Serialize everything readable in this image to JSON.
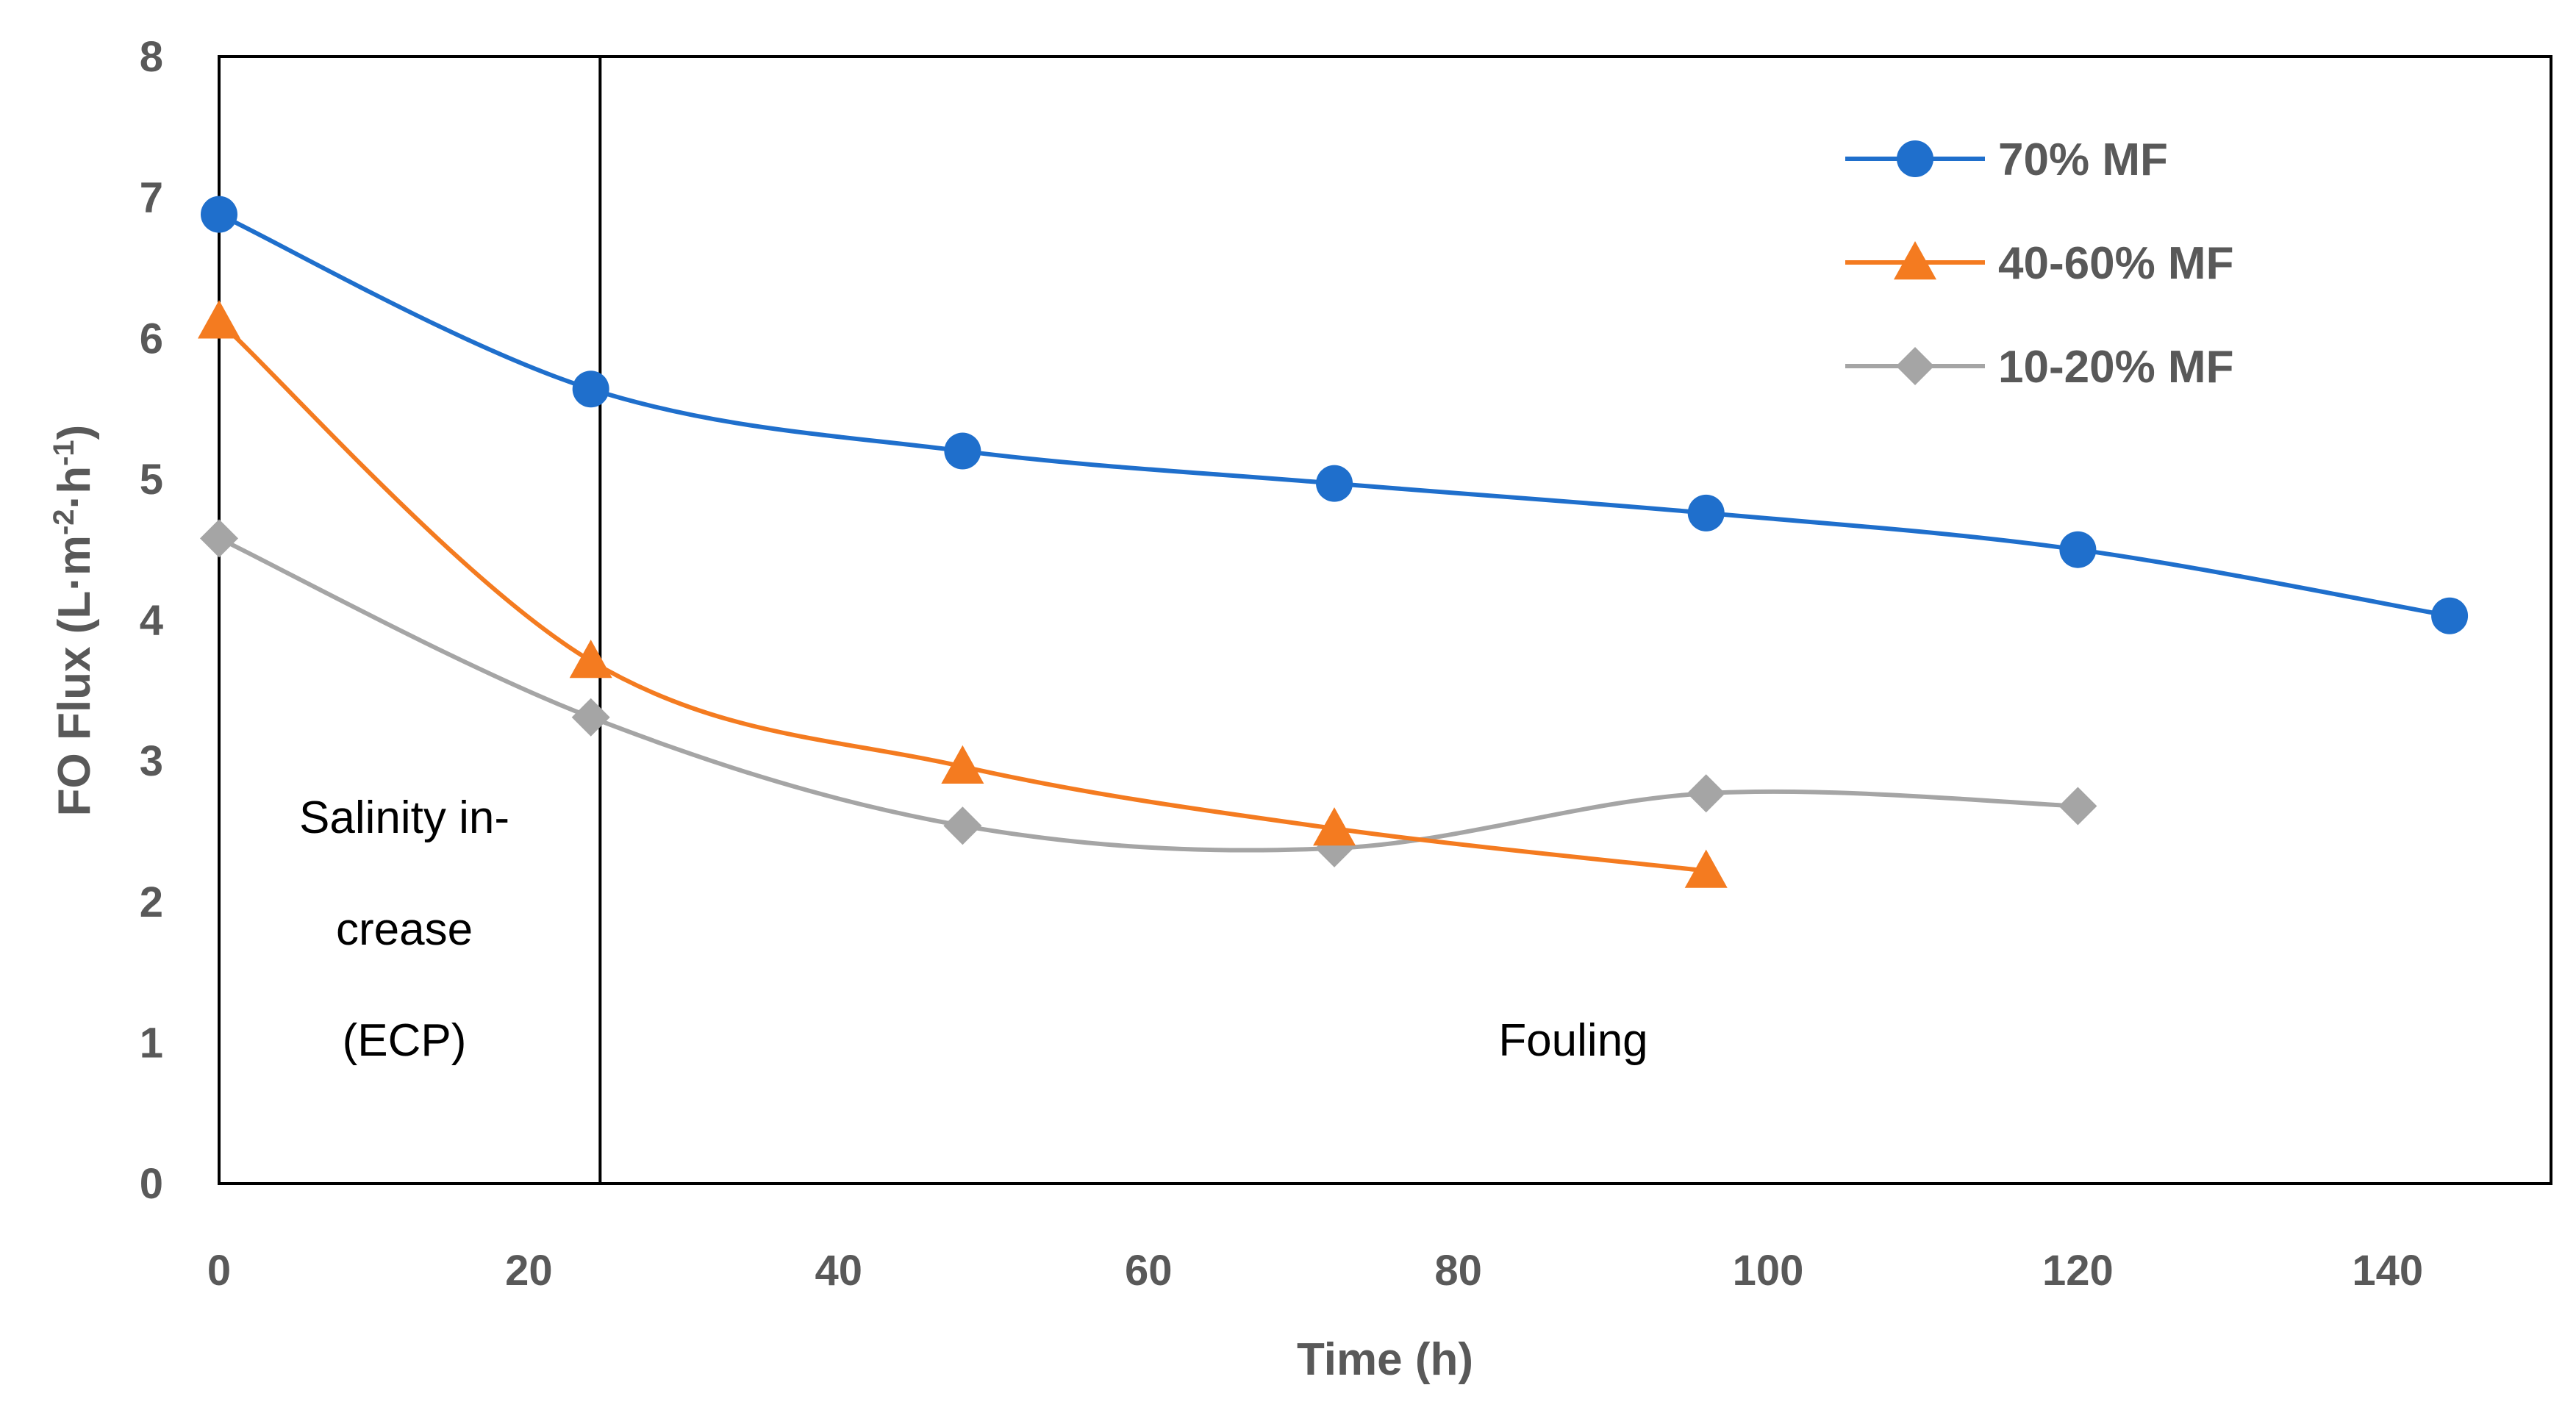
{
  "chart_data": {
    "type": "line",
    "title": "",
    "xlabel": "Time (h)",
    "ylabel": {
      "prefix": "FO Flux (L·m",
      "exp1": "-2",
      "mid": "·h",
      "exp2": "-1",
      "suffix": ")"
    },
    "xlim": [
      0,
      150
    ],
    "ylim": [
      0,
      8
    ],
    "xticks": [
      "0",
      "20",
      "40",
      "60",
      "80",
      "100",
      "120",
      "140"
    ],
    "yticks": [
      "0",
      "1",
      "2",
      "3",
      "4",
      "5",
      "6",
      "7",
      "8"
    ],
    "legend_position": "top-right",
    "series": [
      {
        "name": "70% MF",
        "color": "#1F6FCC",
        "marker": "circle",
        "x": [
          0,
          24,
          48,
          72,
          96,
          120,
          144
        ],
        "y": [
          6.88,
          5.64,
          5.2,
          4.97,
          4.76,
          4.5,
          4.03
        ]
      },
      {
        "name": "40-60% MF",
        "color": "#F47B20",
        "marker": "triangle",
        "x": [
          0,
          24,
          48,
          72,
          96
        ],
        "y": [
          6.12,
          3.71,
          2.96,
          2.52,
          2.22
        ]
      },
      {
        "name": "10-20% MF",
        "color": "#A5A5A5",
        "marker": "diamond",
        "x": [
          0,
          24,
          48,
          72,
          96,
          120
        ],
        "y": [
          4.58,
          3.31,
          2.54,
          2.38,
          2.77,
          2.68
        ]
      }
    ],
    "divider_x": 24.6,
    "annotations": {
      "ecp_lines": [
        "Salinity in-",
        "crease",
        "(ECP)"
      ],
      "fouling": "Fouling"
    }
  }
}
